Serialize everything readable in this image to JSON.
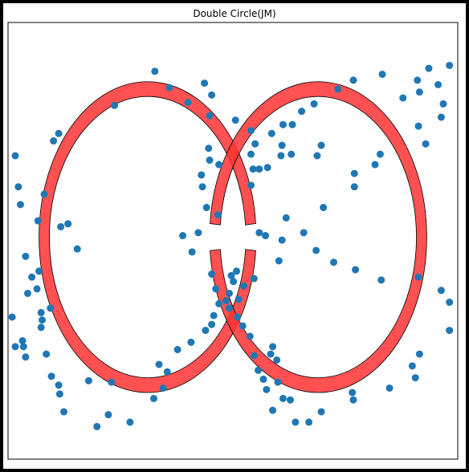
{
  "chart_data": {
    "type": "scatter",
    "title": "Double Circle(JM)",
    "xlabel": "",
    "ylabel": "",
    "grid": false,
    "axes_visible": false,
    "xlim": [
      -1.35,
      3.0
    ],
    "ylim": [
      -1.5,
      1.45
    ],
    "colors": {
      "points": "#1f77b4",
      "ring_fill": "#ff3333",
      "ring_edge": "#000000"
    },
    "rings": [
      {
        "name": "left",
        "center": [
          0,
          0
        ],
        "r_inner": 0.95,
        "r_outer": 1.05,
        "gap_start_deg": 355,
        "gap_end_deg": 5
      },
      {
        "name": "right",
        "center": [
          1.65,
          0
        ],
        "r_inner": 0.95,
        "r_outer": 1.05,
        "gap_start_deg": 175,
        "gap_end_deg": 185
      }
    ],
    "series": [
      {
        "values_x": [
          0.07,
          0.21,
          0.39,
          0.62,
          0.6,
          0.85,
          1.0,
          1.04,
          1.0,
          1.08,
          0.55,
          -0.32,
          -0.86,
          -0.91,
          -1.28,
          -1.25,
          -1.23,
          -1.0,
          -1.06,
          -0.84,
          -0.77,
          -0.68,
          -1.18,
          -1.05,
          -1.12,
          -1.31,
          -1.28,
          -1.18,
          -1.2,
          -1.16,
          -1.07,
          -0.94,
          -1.03,
          -1.02,
          -1.03,
          -1.21,
          -0.98,
          -0.93,
          -0.86,
          -0.85,
          -0.81,
          -0.49,
          -0.57,
          -0.35,
          -0.38,
          -0.17,
          0.06,
          0.15,
          0.19,
          0.11,
          0.29,
          0.42,
          0.56,
          0.62,
          0.64,
          0.69,
          0.76,
          0.79,
          0.93,
          1.03,
          1.27,
          1.3,
          1.14,
          1.08,
          1.34,
          1.0,
          1.02,
          1.16,
          1.29,
          1.39,
          1.3,
          1.2,
          1.31,
          0.59,
          0.6,
          0.69,
          0.52,
          0.53,
          0.57,
          0.68,
          0.49,
          0.34,
          0.43,
          0.62,
          0.81,
          0.86,
          0.83,
          0.66,
          0.88,
          0.79,
          0.87,
          0.92,
          0.99,
          1.21,
          1.03,
          1.19,
          1.25,
          1.07,
          1.12,
          1.26,
          1.15,
          1.31,
          1.38,
          1.21,
          1.43,
          1.56,
          1.68,
          1.99,
          1.98,
          2.34,
          2.59,
          2.56,
          2.63,
          2.92,
          2.92,
          2.84,
          2.62,
          2.26,
          2.01,
          1.8,
          1.63,
          1.51,
          1.7,
          2.0,
          2.0,
          2.2,
          2.25,
          2.69,
          2.62,
          2.84,
          2.86,
          2.47,
          2.63,
          2.81,
          2.61,
          2.72,
          2.92,
          2.27,
          1.99,
          1.84,
          1.61,
          1.49,
          1.4,
          1.68,
          1.64
        ],
        "values_y": [
          1.12,
          1.01,
          0.91,
          0.96,
          0.82,
          0.79,
          0.72,
          0.63,
          0.56,
          0.46,
          1.04,
          0.89,
          0.7,
          0.65,
          0.55,
          0.34,
          0.22,
          0.29,
          0.11,
          0.07,
          0.09,
          -0.08,
          -0.13,
          -0.23,
          -0.27,
          -0.54,
          -0.74,
          -0.81,
          -0.74,
          -0.38,
          -0.35,
          -0.48,
          -0.51,
          -0.56,
          -0.61,
          -0.7,
          -0.79,
          -0.94,
          -1.0,
          -1.06,
          -1.18,
          -1.28,
          -0.97,
          -0.98,
          -1.2,
          -1.25,
          -1.09,
          -1.02,
          -0.91,
          -0.86,
          -0.76,
          -0.71,
          -0.63,
          -0.59,
          -0.53,
          -0.45,
          -0.43,
          -0.38,
          -0.33,
          -0.28,
          -0.16,
          -0.02,
          0.01,
          0.03,
          0.13,
          0.35,
          0.46,
          0.47,
          0.55,
          0.56,
          0.62,
          0.7,
          0.76,
          0.6,
          0.52,
          0.49,
          0.42,
          0.34,
          0.2,
          0.15,
          0.03,
          0.01,
          -0.1,
          -0.25,
          -0.26,
          -0.23,
          -0.3,
          -0.35,
          -0.42,
          -0.48,
          -0.54,
          -0.6,
          -0.67,
          -0.74,
          -0.8,
          -0.79,
          -0.83,
          -0.9,
          -0.96,
          -0.98,
          -1.03,
          -1.09,
          -1.1,
          -1.17,
          -1.25,
          -1.25,
          -1.18,
          -1.1,
          -1.05,
          -1.02,
          -0.95,
          -0.87,
          -0.79,
          -0.63,
          -0.44,
          -0.36,
          -0.27,
          -0.29,
          -0.22,
          -0.17,
          -0.09,
          0.03,
          0.2,
          0.34,
          0.43,
          0.49,
          0.56,
          0.63,
          0.75,
          0.81,
          0.9,
          0.94,
          0.98,
          1.03,
          1.06,
          1.14,
          1.16,
          1.1,
          1.06,
          1.0,
          0.9,
          0.85,
          0.76,
          0.62,
          0.55
        ]
      }
    ]
  }
}
